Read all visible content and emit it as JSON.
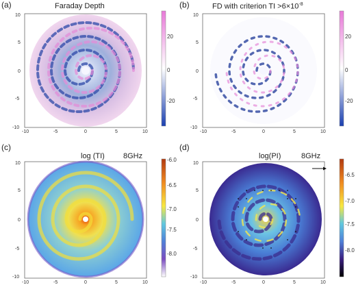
{
  "panels": [
    {
      "letter": "(a)",
      "title": "Faraday Depth",
      "freq": "",
      "colorbar": {
        "ticks": [
          "20",
          "0",
          "-20"
        ],
        "colors": [
          "#e879d8",
          "#ffffff",
          "#1a3fb0"
        ]
      }
    },
    {
      "letter": "(b)",
      "title": "FD with criterion TI >6×10",
      "title_sup": "-8",
      "freq": "",
      "colorbar": {
        "ticks": [
          "20",
          "0",
          "-20"
        ],
        "colors": [
          "#e879d8",
          "#ffffff",
          "#1a3fb0"
        ]
      }
    },
    {
      "letter": "(c)",
      "title": "log (TI)",
      "freq": "8GHz",
      "colorbar": {
        "ticks": [
          "-6.0",
          "-6.5",
          "-7.0",
          "-7.5",
          "-8.0"
        ],
        "colors": [
          "#b23a10",
          "#f08a20",
          "#f8e840",
          "#60c8e0",
          "#5080d8",
          "#7a4cc0",
          "#ffffff"
        ]
      }
    },
    {
      "letter": "(d)",
      "title": "log(PI)",
      "freq": "8GHz",
      "colorbar": {
        "ticks": [
          "-6.5",
          "-7.0",
          "-7.5",
          "-8.0"
        ],
        "colors": [
          "#b23a10",
          "#f08a20",
          "#f8e840",
          "#60c8e0",
          "#5080d8",
          "#3a1f80",
          "#000000"
        ]
      }
    }
  ],
  "axis_ticks": [
    "-10",
    "-5",
    "0",
    "5",
    "10"
  ]
}
